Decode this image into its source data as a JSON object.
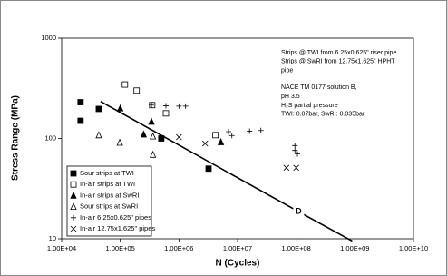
{
  "chart_data": {
    "type": "scatter",
    "x_label": "N (Cycles)",
    "y_label": "Stress Range (MPa)",
    "xscale": "log",
    "yscale": "log",
    "xlim": [
      10000,
      10000000000
    ],
    "ylim": [
      10,
      1000
    ],
    "xticks": [
      {
        "value": 10000,
        "label": "1.00E+04"
      },
      {
        "value": 100000,
        "label": "1.00E+05"
      },
      {
        "value": 1000000,
        "label": "1.00E+06"
      },
      {
        "value": 10000000,
        "label": "1.00E+07"
      },
      {
        "value": 100000000,
        "label": "1.00E+08"
      },
      {
        "value": 1000000000,
        "label": "1.00E+09"
      },
      {
        "value": 10000000000,
        "label": "1.00E+10"
      }
    ],
    "yticks": [
      10,
      100,
      1000
    ],
    "legend": "lower left",
    "series": [
      {
        "name": "Sour strips at TWI",
        "marker": "square-filled",
        "color": "#000000",
        "x": [
          21000,
          21000,
          43000,
          500000,
          3200000
        ],
        "y": [
          230,
          150,
          197,
          100,
          50
        ]
      },
      {
        "name": "In-air strips at TWI",
        "marker": "square-open",
        "color": "#000000",
        "x": [
          120000,
          190000,
          350000,
          600000,
          4200000
        ],
        "y": [
          345,
          300,
          215,
          178,
          108
        ]
      },
      {
        "name": "In-air strips at SwRI",
        "marker": "triangle-filled",
        "color": "#000000",
        "x": [
          100000,
          250000,
          340000,
          5200000
        ],
        "y": [
          200,
          110,
          147,
          92
        ]
      },
      {
        "name": "Sour strips at SwRI",
        "marker": "triangle-open",
        "color": "#000000",
        "x": [
          43000,
          98000,
          360000,
          360000
        ],
        "y": [
          108,
          91,
          105,
          69
        ]
      },
      {
        "name": "In-air 6.25x0.625\" pipes",
        "marker": "plus",
        "color": "#000000",
        "x": [
          340000,
          600000,
          1000000,
          1300000,
          7000000,
          8000000,
          16000000,
          25000000,
          95000000,
          95000000,
          105000000
        ],
        "y": [
          215,
          212,
          210,
          210,
          117,
          107,
          118,
          120,
          85,
          76,
          70
        ]
      },
      {
        "name": "In-air 12.75x1.625\" pipes",
        "marker": "cross",
        "color": "#000000",
        "x": [
          1000000,
          2800000,
          68000000,
          100000000
        ],
        "y": [
          103,
          89,
          51,
          51
        ]
      }
    ],
    "curve": {
      "name": "D",
      "color": "#000000",
      "x": [
        46000,
        110000000,
        900000000
      ],
      "y": [
        234,
        18.6,
        9.5
      ]
    },
    "notes": [
      [
        "Strips @ TWI from 6.25x0.625\" riser pipe",
        "Strips @ SwRI from 12.75x1.625\" HPHT",
        "pipe"
      ],
      [
        "NACE TM 0177 solution B,",
        "pH 3.5",
        "H₂S partial pressure",
        "TWI: 0.07bar, SwRI: 0.035bar"
      ]
    ]
  }
}
